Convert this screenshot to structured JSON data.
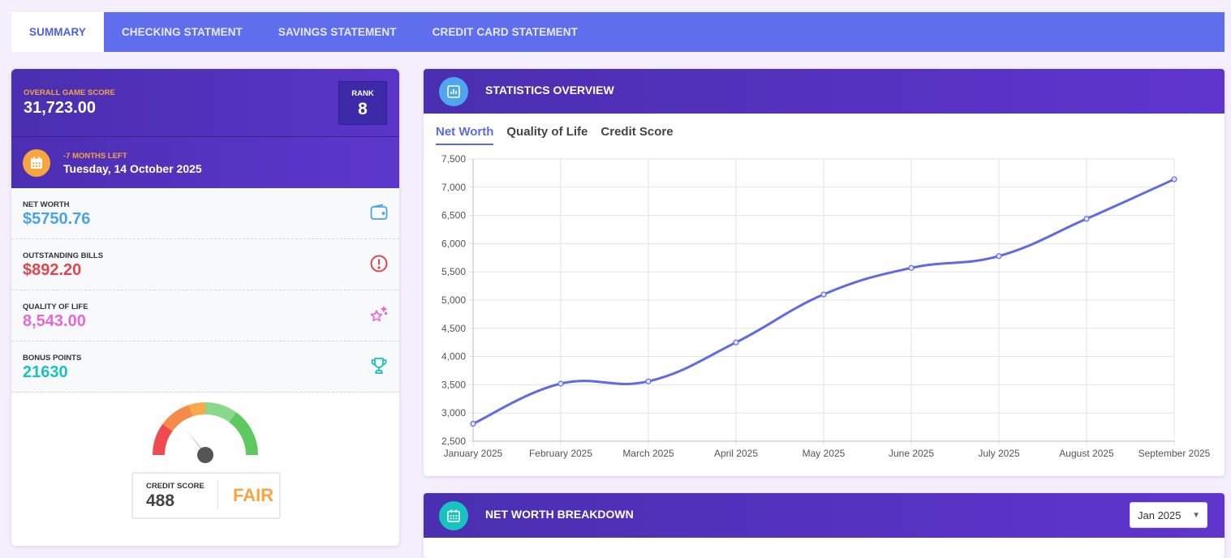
{
  "tabs": [
    {
      "label": "SUMMARY",
      "active": true
    },
    {
      "label": "CHECKING STATMENT",
      "active": false
    },
    {
      "label": "SAVINGS STATEMENT",
      "active": false
    },
    {
      "label": "CREDIT CARD STATEMENT",
      "active": false
    }
  ],
  "summary": {
    "score_label": "OVERALL GAME SCORE",
    "score_value": "31,723.00",
    "rank_label": "RANK",
    "rank_value": "8",
    "months_left": "-7 MONTHS LEFT",
    "date": "Tuesday, 14 October 2025",
    "stats": [
      {
        "label": "NET WORTH",
        "value": "$5750.76",
        "color": "#4aa3e8",
        "icon": "wallet-icon"
      },
      {
        "label": "OUTSTANDING BILLS",
        "value": "$892.20",
        "color": "#e0464e",
        "icon": "alert-circle-icon"
      },
      {
        "label": "QUALITY OF LIFE",
        "value": "8,543.00",
        "color": "#e468d6",
        "icon": "sparkles-icon"
      },
      {
        "label": "BONUS POINTS",
        "value": "21630",
        "color": "#17c2c0",
        "icon": "trophy-icon"
      }
    ],
    "credit_label": "CREDIT SCORE",
    "credit_value": "488",
    "credit_rating": "FAIR"
  },
  "statistics": {
    "title": "STATISTICS OVERVIEW",
    "sub_tabs": [
      {
        "label": "Net Worth",
        "active": true
      },
      {
        "label": "Quality of Life",
        "active": false
      },
      {
        "label": "Credit Score",
        "active": false
      }
    ]
  },
  "chart_data": {
    "type": "line",
    "categories": [
      "January 2025",
      "February 2025",
      "March 2025",
      "April 2025",
      "May 2025",
      "June 2025",
      "July 2025",
      "August 2025",
      "September 2025"
    ],
    "series": [
      {
        "values": [
          2810,
          3520,
          3560,
          4250,
          5100,
          5570,
          5780,
          6440,
          7140
        ],
        "color": "#5f6ae6"
      }
    ],
    "ylim": [
      2500,
      7500
    ],
    "yticks": [
      2500,
      3000,
      3500,
      4000,
      4500,
      5000,
      5500,
      6000,
      6500,
      7000,
      7500
    ],
    "ytick_labels": [
      "2,500",
      "3,000",
      "3,500",
      "4,000",
      "4,500",
      "5,000",
      "5,500",
      "6,000",
      "6,500",
      "7,000",
      "7,500"
    ],
    "grid": true
  },
  "breakdown": {
    "title": "NET WORTH BREAKDOWN",
    "selected_month": "Jan 2025"
  },
  "colors": {
    "tab_bar": "#5f6eec",
    "header_purple": "#4a2fb0",
    "accent_orange": "#f7a53e",
    "chart_line": "#5f6ae6"
  }
}
